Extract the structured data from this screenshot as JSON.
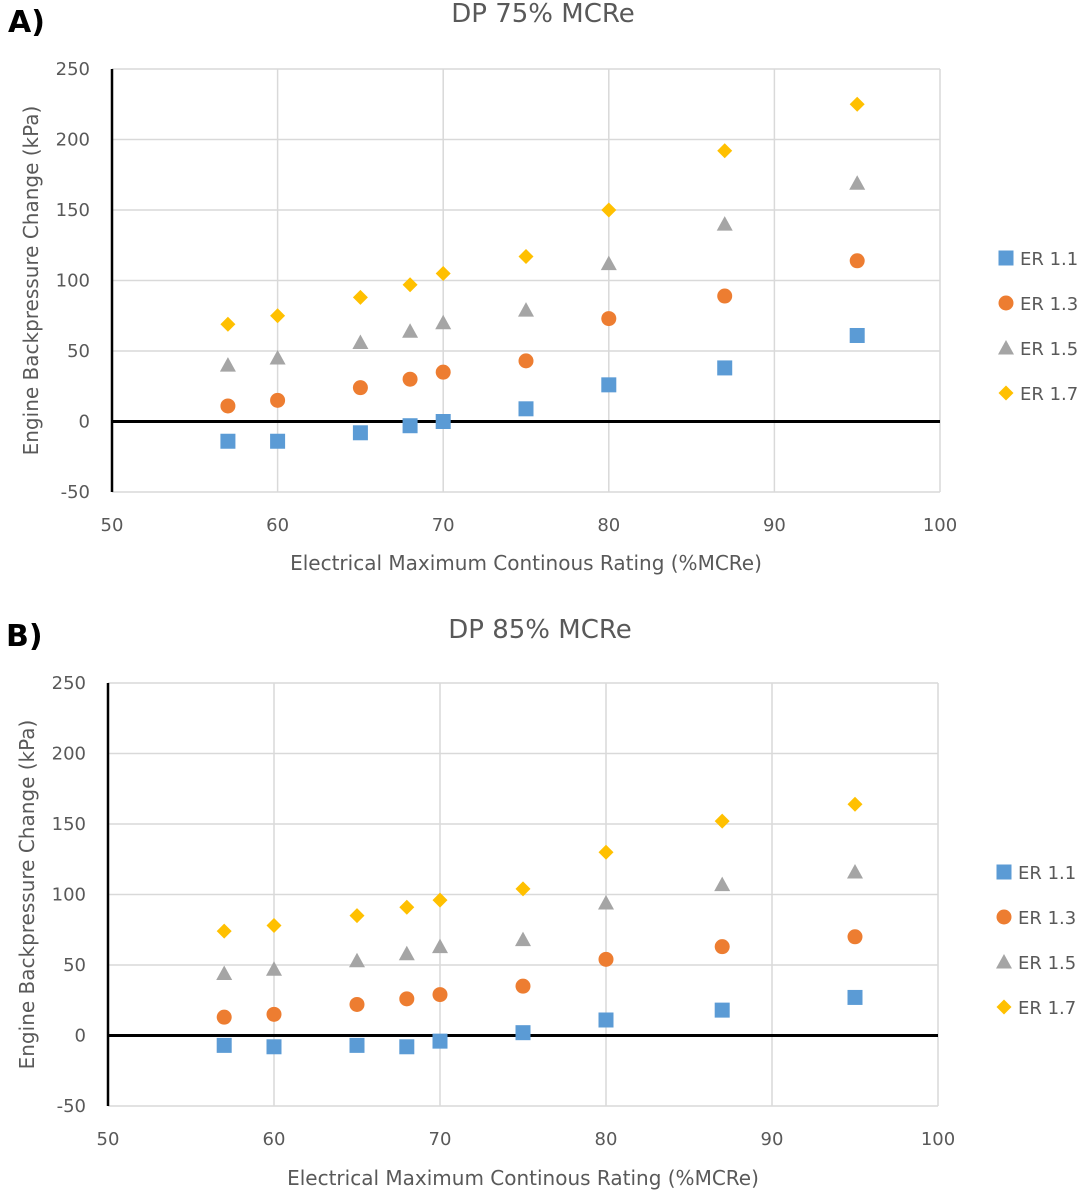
{
  "chart_data": [
    {
      "type": "scatter",
      "panel_label": "A)",
      "title": "DP 75% MCRe",
      "xlabel": "Electrical Maximum Continous Rating (%MCRe)",
      "ylabel": "Engine Backpressure Change (kPa)",
      "xlim": [
        50,
        100
      ],
      "ylim": [
        -50,
        250
      ],
      "xticks": [
        "50",
        "60",
        "70",
        "80",
        "90",
        "100"
      ],
      "yticks": [
        "-50",
        "0",
        "50",
        "100",
        "150",
        "200",
        "250"
      ],
      "grid": true,
      "legend": "right",
      "x": [
        57,
        60,
        65,
        68,
        70,
        75,
        80,
        87,
        95
      ],
      "series": [
        {
          "name": "ER 1.1",
          "color": "#5b9bd5",
          "marker": "square",
          "values": [
            -14,
            -14,
            -8,
            -3,
            0,
            9,
            26,
            38,
            61
          ]
        },
        {
          "name": "ER 1.3",
          "color": "#ed7d31",
          "marker": "circle",
          "values": [
            11,
            15,
            24,
            30,
            35,
            43,
            73,
            89,
            114
          ]
        },
        {
          "name": "ER 1.5",
          "color": "#a5a5a5",
          "marker": "triangle",
          "values": [
            40,
            45,
            56,
            64,
            70,
            79,
            112,
            140,
            169
          ]
        },
        {
          "name": "ER 1.7",
          "color": "#ffc000",
          "marker": "diamond",
          "values": [
            69,
            75,
            88,
            97,
            105,
            117,
            150,
            192,
            225
          ]
        }
      ]
    },
    {
      "type": "scatter",
      "panel_label": "B)",
      "title": "DP 85% MCRe",
      "xlabel": "Electrical Maximum Continous Rating (%MCRe)",
      "ylabel": "Engine Backpressure Change (kPa)",
      "xlim": [
        50,
        100
      ],
      "ylim": [
        -50,
        250
      ],
      "xticks": [
        "50",
        "60",
        "70",
        "80",
        "90",
        "100"
      ],
      "yticks": [
        "-50",
        "0",
        "50",
        "100",
        "150",
        "200",
        "250"
      ],
      "grid": true,
      "legend": "right",
      "x": [
        57,
        60,
        65,
        68,
        70,
        75,
        80,
        87,
        95
      ],
      "series": [
        {
          "name": "ER 1.1",
          "color": "#5b9bd5",
          "marker": "square",
          "values": [
            -7,
            -8,
            -7,
            -8,
            -4,
            2,
            11,
            18,
            27
          ]
        },
        {
          "name": "ER 1.3",
          "color": "#ed7d31",
          "marker": "circle",
          "values": [
            13,
            15,
            22,
            26,
            29,
            35,
            54,
            63,
            70
          ]
        },
        {
          "name": "ER 1.5",
          "color": "#a5a5a5",
          "marker": "triangle",
          "values": [
            44,
            47,
            53,
            58,
            63,
            68,
            94,
            107,
            116
          ]
        },
        {
          "name": "ER 1.7",
          "color": "#ffc000",
          "marker": "diamond",
          "values": [
            74,
            78,
            85,
            91,
            96,
            104,
            130,
            152,
            164
          ]
        }
      ]
    }
  ]
}
